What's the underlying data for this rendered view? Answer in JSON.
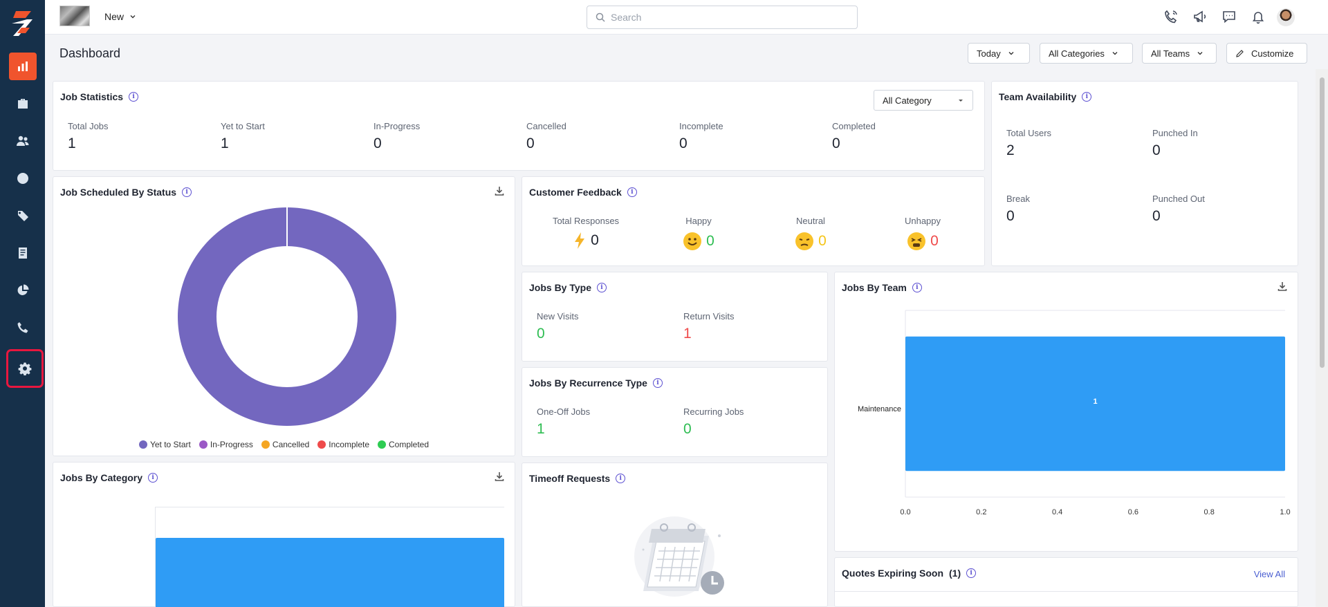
{
  "header": {
    "new_label": "New",
    "search_placeholder": "Search",
    "page_title": "Dashboard",
    "filters": {
      "today": "Today",
      "categories": "All Categories",
      "teams": "All Teams",
      "customize": "Customize"
    }
  },
  "sidebar": {
    "items": [
      "dashboard-icon",
      "briefcase-icon",
      "users-icon",
      "clock-icon",
      "tag-icon",
      "document-icon",
      "pie-chart-icon",
      "phone-icon",
      "gear-icon"
    ]
  },
  "job_statistics": {
    "title": "Job Statistics",
    "category_dropdown": "All Category",
    "stats": [
      {
        "label": "Total Jobs",
        "value": "1"
      },
      {
        "label": "Yet to Start",
        "value": "1"
      },
      {
        "label": "In-Progress",
        "value": "0"
      },
      {
        "label": "Cancelled",
        "value": "0"
      },
      {
        "label": "Incomplete",
        "value": "0"
      },
      {
        "label": "Completed",
        "value": "0"
      }
    ]
  },
  "team_availability": {
    "title": "Team Availability",
    "stats": [
      {
        "label": "Total Users",
        "value": "2"
      },
      {
        "label": "Punched In",
        "value": "0"
      },
      {
        "label": "Break",
        "value": "0"
      },
      {
        "label": "Punched Out",
        "value": "0"
      }
    ]
  },
  "job_scheduled": {
    "title": "Job Scheduled By Status",
    "legend": [
      "Yet to Start",
      "In-Progress",
      "Cancelled",
      "Incomplete",
      "Completed"
    ],
    "colors": [
      "#7367bf",
      "#9b59c6",
      "#f5a623",
      "#ef4b4b",
      "#2ecc52"
    ]
  },
  "customer_feedback": {
    "title": "Customer Feedback",
    "items": [
      {
        "label": "Total Responses",
        "value": "0"
      },
      {
        "label": "Happy",
        "value": "0"
      },
      {
        "label": "Neutral",
        "value": "0"
      },
      {
        "label": "Unhappy",
        "value": "0"
      }
    ]
  },
  "jobs_by_type": {
    "title": "Jobs By Type",
    "items": [
      {
        "label": "New Visits",
        "value": "0"
      },
      {
        "label": "Return Visits",
        "value": "1"
      }
    ]
  },
  "jobs_by_recurrence": {
    "title": "Jobs By Recurrence Type",
    "items": [
      {
        "label": "One-Off Jobs",
        "value": "1"
      },
      {
        "label": "Recurring Jobs",
        "value": "0"
      }
    ]
  },
  "jobs_by_team": {
    "title": "Jobs By Team"
  },
  "jobs_by_category": {
    "title": "Jobs By Category"
  },
  "timeoff": {
    "title": "Timeoff Requests"
  },
  "quotes": {
    "title": "Quotes Expiring Soon",
    "count": "(1)",
    "view_all": "View All"
  },
  "chart_data": [
    {
      "type": "pie",
      "title": "Job Scheduled By Status",
      "categories": [
        "Yet to Start",
        "In-Progress",
        "Cancelled",
        "Incomplete",
        "Completed"
      ],
      "values": [
        1,
        0,
        0,
        0,
        0
      ]
    },
    {
      "type": "bar",
      "title": "Jobs By Team",
      "orientation": "horizontal",
      "categories": [
        "Maintenance"
      ],
      "values": [
        1
      ],
      "xlim": [
        0,
        1
      ],
      "xticks": [
        "0.0",
        "0.2",
        "0.4",
        "0.6",
        "0.8",
        "1.0"
      ],
      "bar_label": "1"
    }
  ]
}
